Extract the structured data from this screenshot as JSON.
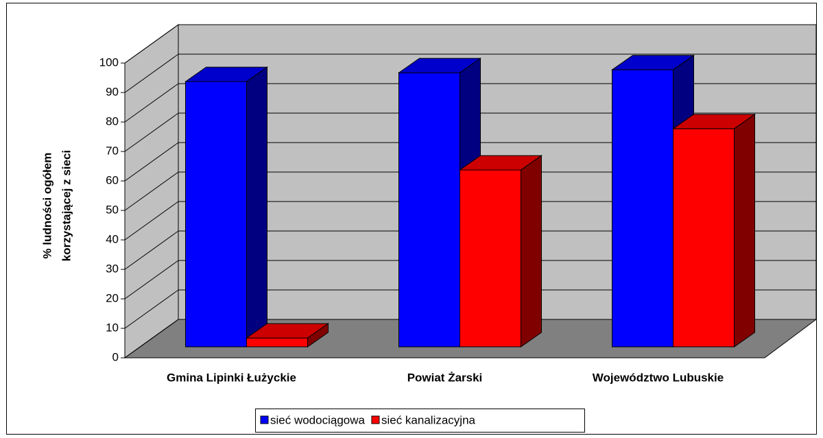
{
  "chart_data": {
    "type": "bar3d",
    "ylabel": [
      "% ludności ogółem",
      "korzystającej z sieci"
    ],
    "categories": [
      "Gmina Lipinki Łużyckie",
      "Powiat Żarski",
      "Województwo Lubuskie"
    ],
    "series": [
      {
        "name": "sieć wodociągowa",
        "color": "#0000ff",
        "values": [
          90,
          93,
          94
        ]
      },
      {
        "name": "sieć kanalizacyjna",
        "color": "#ff0000",
        "values": [
          3,
          60,
          74
        ]
      }
    ],
    "ylim": [
      0,
      100
    ],
    "yticks": [
      0,
      10,
      20,
      30,
      40,
      50,
      60,
      70,
      80,
      90,
      100
    ],
    "grid": true,
    "legend": "bottom"
  }
}
